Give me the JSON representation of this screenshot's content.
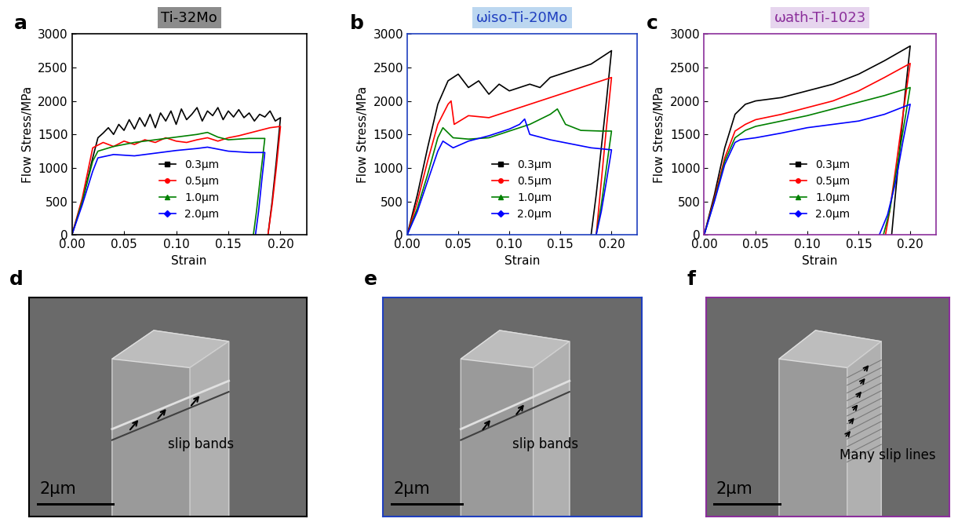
{
  "chart_data": [
    {
      "type": "line",
      "panel": "a",
      "title": "Ti-32Mo",
      "color": "#000000",
      "x_label": "Strain",
      "y_label": "Flow Stress/MPa",
      "xlim": [
        0,
        0.225
      ],
      "ylim": [
        0,
        3000
      ],
      "xticks": [
        {
          "value": 0,
          "label": "0.00"
        },
        {
          "value": 0.05,
          "label": "0.05"
        },
        {
          "value": 0.1,
          "label": "0.10"
        },
        {
          "value": 0.15,
          "label": "0.15"
        },
        {
          "value": 0.2,
          "label": "0.20"
        }
      ],
      "yticks": [
        0,
        500,
        1000,
        1500,
        2000,
        2500,
        3000
      ],
      "legend": "lower center",
      "series": [
        {
          "name": "0.3μm",
          "color": "#000000",
          "marker": "s",
          "line_style": "solid",
          "x": [
            0,
            0.01,
            0.02,
            0.025,
            0.03,
            0.035,
            0.04,
            0.045,
            0.05,
            0.055,
            0.06,
            0.065,
            0.07,
            0.075,
            0.08,
            0.085,
            0.09,
            0.095,
            0.1,
            0.105,
            0.11,
            0.115,
            0.12,
            0.125,
            0.13,
            0.135,
            0.14,
            0.145,
            0.15,
            0.155,
            0.16,
            0.165,
            0.17,
            0.175,
            0.18,
            0.185,
            0.19,
            0.195,
            0.2,
            0.196,
            0.192,
            0.188
          ],
          "values": [
            0,
            500,
            1150,
            1450,
            1520,
            1600,
            1500,
            1650,
            1560,
            1720,
            1580,
            1750,
            1620,
            1800,
            1600,
            1820,
            1700,
            1850,
            1650,
            1880,
            1720,
            1800,
            1900,
            1700,
            1850,
            1780,
            1900,
            1720,
            1850,
            1760,
            1870,
            1750,
            1820,
            1700,
            1800,
            1760,
            1850,
            1700,
            1750,
            1100,
            500,
            0
          ]
        },
        {
          "name": "0.5μm",
          "color": "#ff0000",
          "marker": "o",
          "line_style": "solid",
          "x": [
            0,
            0.01,
            0.02,
            0.03,
            0.04,
            0.05,
            0.06,
            0.07,
            0.08,
            0.09,
            0.1,
            0.11,
            0.12,
            0.13,
            0.14,
            0.15,
            0.16,
            0.17,
            0.18,
            0.19,
            0.2,
            0.196,
            0.192,
            0.188
          ],
          "values": [
            0,
            550,
            1300,
            1380,
            1320,
            1400,
            1350,
            1420,
            1380,
            1450,
            1400,
            1380,
            1420,
            1450,
            1400,
            1450,
            1480,
            1520,
            1560,
            1600,
            1620,
            1000,
            450,
            0
          ]
        },
        {
          "name": "1.0μm",
          "color": "#008000",
          "marker": "^",
          "line_style": "solid",
          "x": [
            0,
            0.01,
            0.02,
            0.025,
            0.04,
            0.06,
            0.08,
            0.1,
            0.12,
            0.13,
            0.14,
            0.15,
            0.16,
            0.17,
            0.18,
            0.185,
            0.181,
            0.177,
            0.174
          ],
          "values": [
            0,
            500,
            1100,
            1250,
            1320,
            1380,
            1420,
            1460,
            1500,
            1530,
            1460,
            1420,
            1430,
            1440,
            1440,
            1440,
            900,
            350,
            0
          ]
        },
        {
          "name": "2.0μm",
          "color": "#0000ff",
          "marker": "D",
          "line_style": "solid",
          "x": [
            0,
            0.01,
            0.02,
            0.025,
            0.04,
            0.06,
            0.08,
            0.1,
            0.12,
            0.13,
            0.15,
            0.17,
            0.185,
            0.182,
            0.179,
            0.176
          ],
          "values": [
            0,
            450,
            950,
            1150,
            1200,
            1180,
            1220,
            1260,
            1290,
            1310,
            1250,
            1230,
            1230,
            800,
            350,
            0
          ]
        }
      ]
    },
    {
      "type": "line",
      "panel": "b",
      "title": "ωiso-Ti-20Mo",
      "color": "#1f3fbf",
      "x_label": "Strain",
      "y_label": "Flow Stress/MPa",
      "xlim": [
        0,
        0.225
      ],
      "ylim": [
        0,
        3000
      ],
      "xticks": [
        {
          "value": 0,
          "label": "0.00"
        },
        {
          "value": 0.05,
          "label": "0.05"
        },
        {
          "value": 0.1,
          "label": "0.10"
        },
        {
          "value": 0.15,
          "label": "0.15"
        },
        {
          "value": 0.2,
          "label": "0.20"
        }
      ],
      "yticks": [
        0,
        500,
        1000,
        1500,
        2000,
        2500,
        3000
      ],
      "legend": "lower center",
      "series": [
        {
          "name": "0.3μm",
          "color": "#000000",
          "marker": "s",
          "line_style": "solid",
          "x": [
            0,
            0.01,
            0.02,
            0.03,
            0.04,
            0.05,
            0.06,
            0.07,
            0.08,
            0.09,
            0.1,
            0.11,
            0.12,
            0.13,
            0.14,
            0.15,
            0.16,
            0.17,
            0.18,
            0.19,
            0.2,
            0.195,
            0.19,
            0.185,
            0.18
          ],
          "values": [
            0,
            600,
            1300,
            1950,
            2300,
            2400,
            2200,
            2300,
            2100,
            2250,
            2150,
            2200,
            2250,
            2200,
            2350,
            2400,
            2450,
            2500,
            2550,
            2650,
            2750,
            2000,
            1300,
            600,
            0
          ]
        },
        {
          "name": "0.5μm",
          "color": "#ff0000",
          "marker": "o",
          "line_style": "solid",
          "x": [
            0,
            0.01,
            0.02,
            0.03,
            0.04,
            0.043,
            0.046,
            0.06,
            0.08,
            0.1,
            0.12,
            0.14,
            0.16,
            0.18,
            0.2,
            0.195,
            0.19,
            0.185
          ],
          "values": [
            0,
            500,
            1100,
            1650,
            1950,
            2000,
            1650,
            1780,
            1750,
            1850,
            1950,
            2050,
            2150,
            2250,
            2350,
            1600,
            800,
            0
          ]
        },
        {
          "name": "1.0μm",
          "color": "#008000",
          "marker": "^",
          "line_style": "solid",
          "x": [
            0,
            0.01,
            0.02,
            0.03,
            0.035,
            0.045,
            0.06,
            0.08,
            0.1,
            0.12,
            0.14,
            0.147,
            0.155,
            0.17,
            0.19,
            0.2,
            0.195,
            0.19,
            0.185
          ],
          "values": [
            0,
            400,
            900,
            1450,
            1600,
            1450,
            1430,
            1450,
            1550,
            1650,
            1800,
            1880,
            1650,
            1560,
            1550,
            1550,
            1000,
            450,
            0
          ]
        },
        {
          "name": "2.0μm",
          "color": "#0000ff",
          "marker": "D",
          "line_style": "solid",
          "x": [
            0,
            0.01,
            0.02,
            0.03,
            0.035,
            0.045,
            0.06,
            0.08,
            0.1,
            0.11,
            0.115,
            0.12,
            0.14,
            0.16,
            0.18,
            0.2,
            0.195,
            0.19,
            0.185
          ],
          "values": [
            0,
            350,
            800,
            1250,
            1400,
            1300,
            1400,
            1480,
            1580,
            1650,
            1730,
            1500,
            1420,
            1360,
            1300,
            1270,
            800,
            350,
            0
          ]
        }
      ]
    },
    {
      "type": "line",
      "panel": "c",
      "title": "ωath-Ti-1023",
      "color": "#8b2f9b",
      "x_label": "Strain",
      "y_label": "Flow Stress/MPa",
      "xlim": [
        0,
        0.225
      ],
      "ylim": [
        0,
        3000
      ],
      "xticks": [
        {
          "value": 0,
          "label": "0.00"
        },
        {
          "value": 0.05,
          "label": "0.05"
        },
        {
          "value": 0.1,
          "label": "0.10"
        },
        {
          "value": 0.15,
          "label": "0.15"
        },
        {
          "value": 0.2,
          "label": "0.20"
        }
      ],
      "yticks": [
        0,
        500,
        1000,
        1500,
        2000,
        2500,
        3000
      ],
      "legend": "lower center",
      "series": [
        {
          "name": "0.3μm",
          "color": "#000000",
          "marker": "s",
          "line_style": "solid",
          "x": [
            0,
            0.01,
            0.02,
            0.03,
            0.04,
            0.05,
            0.075,
            0.1,
            0.125,
            0.15,
            0.175,
            0.2,
            0.195,
            0.19,
            0.185,
            0.182
          ],
          "values": [
            0,
            600,
            1300,
            1800,
            1950,
            2000,
            2050,
            2150,
            2250,
            2400,
            2600,
            2820,
            2100,
            1300,
            500,
            0
          ]
        },
        {
          "name": "0.5μm",
          "color": "#ff0000",
          "marker": "o",
          "line_style": "solid",
          "x": [
            0,
            0.01,
            0.02,
            0.03,
            0.04,
            0.05,
            0.075,
            0.1,
            0.125,
            0.15,
            0.175,
            0.2,
            0.193,
            0.186,
            0.18,
            0.176
          ],
          "values": [
            0,
            550,
            1150,
            1550,
            1650,
            1720,
            1800,
            1900,
            2000,
            2150,
            2350,
            2560,
            1800,
            1000,
            350,
            0
          ]
        },
        {
          "name": "1.0μm",
          "color": "#008000",
          "marker": "^",
          "line_style": "solid",
          "x": [
            0,
            0.01,
            0.02,
            0.03,
            0.04,
            0.05,
            0.075,
            0.1,
            0.125,
            0.15,
            0.175,
            0.2,
            0.193,
            0.186,
            0.18,
            0.174
          ],
          "values": [
            0,
            520,
            1100,
            1450,
            1560,
            1620,
            1700,
            1780,
            1880,
            1980,
            2080,
            2200,
            1550,
            900,
            350,
            0
          ]
        },
        {
          "name": "2.0μm",
          "color": "#0000ff",
          "marker": "D",
          "line_style": "solid",
          "x": [
            0,
            0.01,
            0.02,
            0.03,
            0.035,
            0.05,
            0.075,
            0.1,
            0.125,
            0.15,
            0.175,
            0.2,
            0.193,
            0.186,
            0.178,
            0.17
          ],
          "values": [
            0,
            500,
            1050,
            1380,
            1420,
            1450,
            1520,
            1600,
            1650,
            1700,
            1800,
            1950,
            1400,
            800,
            300,
            0
          ]
        }
      ]
    }
  ],
  "images": [
    {
      "panel": "d",
      "annotation": "slip bands",
      "scale_bar": "2μm",
      "color": "#000000"
    },
    {
      "panel": "e",
      "annotation": "slip bands",
      "scale_bar": "2μm",
      "color": "#1f3fbf"
    },
    {
      "panel": "f",
      "annotation": "Many slip lines",
      "scale_bar": "2μm",
      "color": "#8b2f9b"
    }
  ]
}
